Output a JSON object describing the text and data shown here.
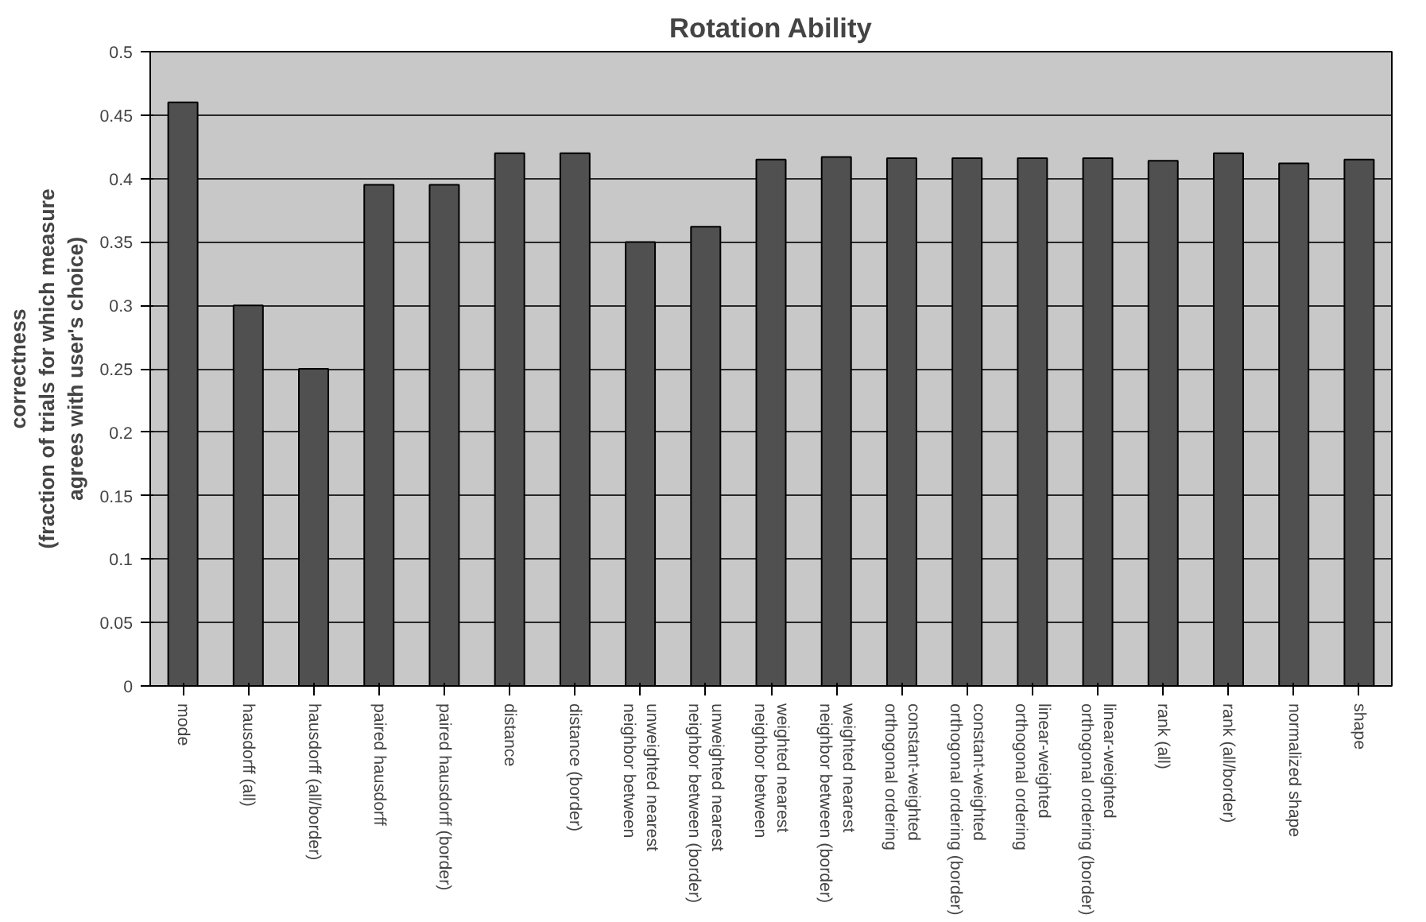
{
  "chart_data": {
    "type": "bar",
    "title": "Rotation Ability",
    "ylabel": "correctness\n(fraction of trials for which measure\nagrees with user's choice)",
    "categories": [
      "mode",
      "hausdorff (all)",
      "hausdorff (all/border)",
      "paired hausdorff",
      "paired hausdorff (border)",
      "distance",
      "distance (border)",
      "unweighted nearest\nneighbor between",
      "unweighted nearest\nneighbor between (border)",
      "weighted nearest\nneighbor between",
      "weighted nearest\nneighbor between (border)",
      "constant-weighted\northogonal ordering",
      "constant-weighted\northogonal ordering (border)",
      "linear-weighted\northogonal ordering",
      "linear-weighted\northogonal ordering (border)",
      "rank (all)",
      "rank (all/border)",
      "normalized shape",
      "shape"
    ],
    "values": [
      0.46,
      0.3,
      0.25,
      0.395,
      0.395,
      0.42,
      0.42,
      0.35,
      0.362,
      0.415,
      0.417,
      0.416,
      0.416,
      0.416,
      0.416,
      0.414,
      0.42,
      0.412,
      0.415
    ],
    "color": "#505050",
    "ylim": [
      0,
      0.5
    ],
    "yticks": [
      0,
      0.05,
      0.1,
      0.15,
      0.2,
      0.25,
      0.3,
      0.35,
      0.4,
      0.45,
      0.5
    ],
    "grid": "y"
  }
}
